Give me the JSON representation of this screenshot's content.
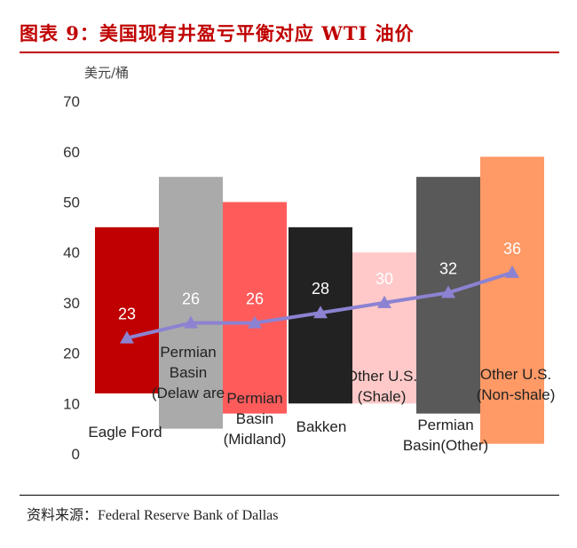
{
  "title": "图表 9：美国现有井盈亏平衡对应 WTI 油价",
  "source": "资料来源：Federal Reserve Bank of Dallas",
  "chart_data": {
    "type": "bar",
    "unit_label": "美元/桶",
    "ylim": [
      0,
      70
    ],
    "yticks": [
      0,
      10,
      20,
      30,
      40,
      50,
      60,
      70
    ],
    "grid": false,
    "categories": [
      {
        "label": [
          "Eagle Ford"
        ],
        "low": 12,
        "high": 45,
        "value": 23,
        "color": "#c00000",
        "value_color": "#ffffff"
      },
      {
        "label": [
          "Permian",
          "Basin",
          "(Delaw are"
        ],
        "low": 5,
        "high": 55,
        "value": 26,
        "color": "#aaaaaa",
        "value_color": "#ffffff"
      },
      {
        "label": [
          "Permian",
          "Basin",
          "(Midland)"
        ],
        "low": 8,
        "high": 50,
        "value": 26,
        "color": "#ff5b5b",
        "value_color": "#ffffff"
      },
      {
        "label": [
          "Bakken"
        ],
        "low": 10,
        "high": 45,
        "value": 28,
        "color": "#222222",
        "value_color": "#ffffff"
      },
      {
        "label": [
          "Other U.S.",
          "(Shale)"
        ],
        "low": 10,
        "high": 40,
        "value": 30,
        "color": "#ffc9c9",
        "value_color": "#ffffff"
      },
      {
        "label": [
          "Permian",
          "Basin(Other)"
        ],
        "low": 8,
        "high": 55,
        "value": 32,
        "color": "#595959",
        "value_color": "#ffffff"
      },
      {
        "label": [
          "Other U.S.",
          "(Non-shale)"
        ],
        "low": 2,
        "high": 59,
        "value": 36,
        "color": "#ff9966",
        "value_color": "#ffffff"
      }
    ],
    "line": {
      "values": [
        23,
        26,
        26,
        28,
        30,
        32,
        36
      ],
      "color": "#8c82d2"
    }
  }
}
